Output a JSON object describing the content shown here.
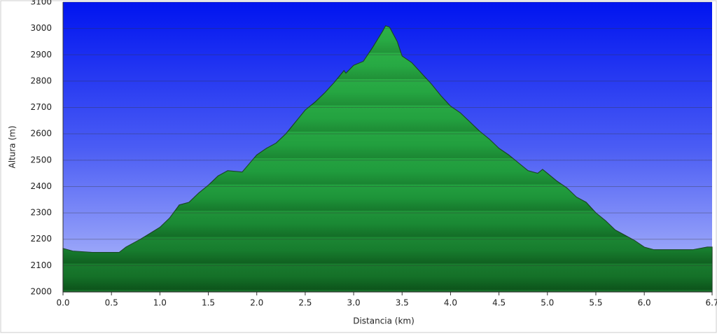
{
  "chart_data": {
    "type": "area",
    "x_label": "Distancia   (km)",
    "y_label": "Altura (m)",
    "x": [
      0,
      0.1,
      0.3,
      0.58,
      0.65,
      0.8,
      1.0,
      1.1,
      1.2,
      1.3,
      1.4,
      1.5,
      1.6,
      1.7,
      1.85,
      2.0,
      2.1,
      2.2,
      2.3,
      2.4,
      2.5,
      2.6,
      2.7,
      2.8,
      2.9,
      2.92,
      3.0,
      3.1,
      3.2,
      3.3,
      3.33,
      3.37,
      3.45,
      3.5,
      3.6,
      3.7,
      3.8,
      3.9,
      4.0,
      4.1,
      4.2,
      4.3,
      4.4,
      4.5,
      4.6,
      4.7,
      4.8,
      4.9,
      4.95,
      5.0,
      5.1,
      5.2,
      5.3,
      5.4,
      5.5,
      5.6,
      5.7,
      5.8,
      5.9,
      6.0,
      6.1,
      6.3,
      6.5,
      6.65,
      6.7
    ],
    "series": [
      {
        "color": "#1f9a3c",
        "values": [
          2165,
          2155,
          2150,
          2150,
          2170,
          2200,
          2245,
          2280,
          2330,
          2340,
          2375,
          2405,
          2440,
          2460,
          2455,
          2520,
          2545,
          2565,
          2600,
          2645,
          2690,
          2720,
          2755,
          2795,
          2840,
          2830,
          2860,
          2875,
          2930,
          2990,
          3010,
          3005,
          2950,
          2895,
          2870,
          2830,
          2790,
          2745,
          2705,
          2680,
          2645,
          2610,
          2580,
          2545,
          2520,
          2490,
          2460,
          2450,
          2465,
          2450,
          2420,
          2395,
          2360,
          2340,
          2300,
          2270,
          2235,
          2215,
          2195,
          2170,
          2160,
          2160,
          2160,
          2170,
          2170
        ]
      }
    ],
    "xlim": [
      0,
      6.7
    ],
    "ylim": [
      2000,
      3100
    ],
    "xticks": [
      {
        "value": 0,
        "label": "0.0"
      },
      0.5,
      {
        "value": 1,
        "label": "1.0"
      },
      1.5,
      {
        "value": 2,
        "label": "2.0"
      },
      2.5,
      {
        "value": 3,
        "label": "3.0"
      },
      3.5,
      {
        "value": 4,
        "label": "4.0"
      },
      4.5,
      {
        "value": 5,
        "label": "5.0"
      },
      5.5,
      {
        "value": 6,
        "label": "6.0"
      },
      6.7
    ],
    "yticks": [
      2000,
      2100,
      2200,
      2300,
      2400,
      2500,
      2600,
      2700,
      2800,
      2900,
      3000,
      3100
    ],
    "grid": true
  }
}
